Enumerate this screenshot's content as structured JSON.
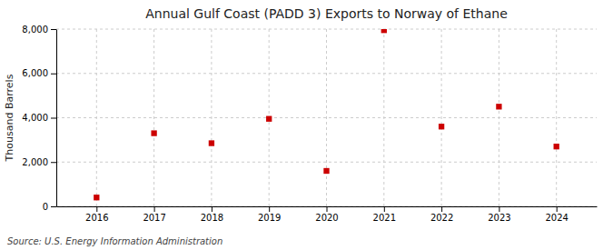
{
  "chart_data": {
    "type": "scatter",
    "title": "Annual Gulf Coast (PADD 3) Exports to Norway of Ethane",
    "ylabel": "Thousand Barrels",
    "source": "Source: U.S. Energy Information Administration",
    "x": [
      2016,
      2017,
      2018,
      2019,
      2020,
      2021,
      2022,
      2023,
      2024
    ],
    "values": [
      400,
      3300,
      2850,
      3950,
      1600,
      7950,
      3600,
      4500,
      2700
    ],
    "color": "#cc0000",
    "marker": "square",
    "xlim": [
      2015.3,
      2024.7
    ],
    "xticks": [
      2016,
      2017,
      2018,
      2019,
      2020,
      2021,
      2022,
      2023,
      2024
    ],
    "ylim": [
      0,
      8000
    ],
    "yticks": [
      0,
      {
        "value": 2000,
        "label": "2,000"
      },
      {
        "value": 4000,
        "label": "4,000"
      },
      {
        "value": 6000,
        "label": "6,000"
      },
      {
        "value": 8000,
        "label": "8,000"
      }
    ],
    "grid": true
  }
}
